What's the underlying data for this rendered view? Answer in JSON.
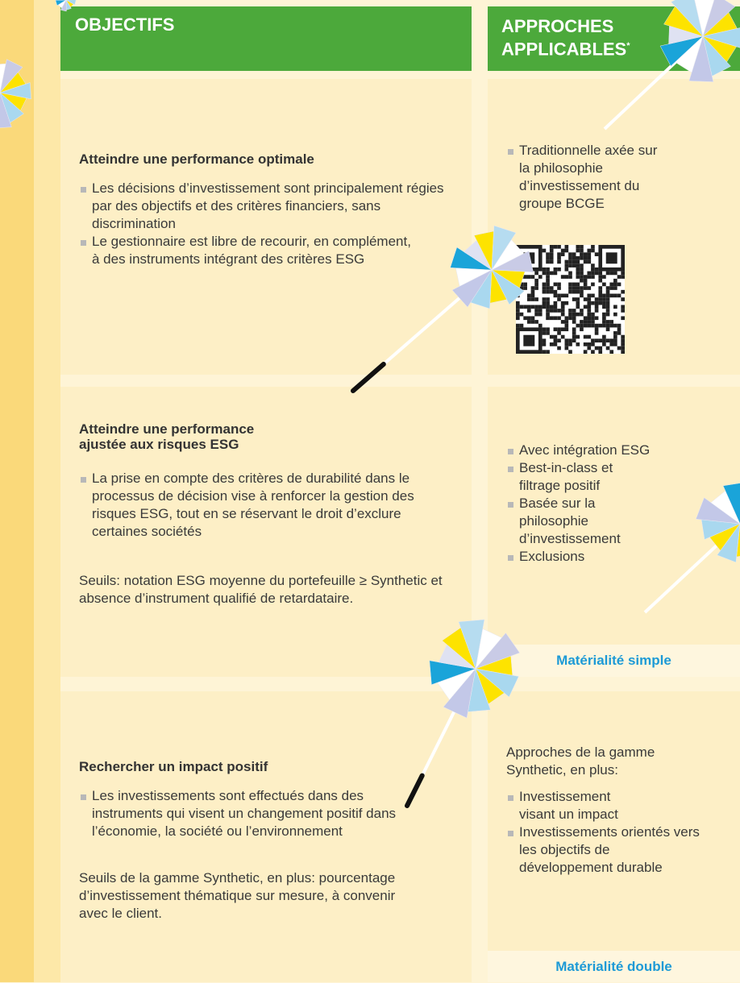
{
  "header": {
    "objectives": "OBJECTIFS",
    "approaches": "APPROCHES APPLICABLES",
    "approaches_mark": "*"
  },
  "rows": [
    {
      "objective": {
        "title": "Atteindre une performance optimale",
        "bullets": [
          "Les décisions d’investissement sont principalement régies par des objectifs et des critères financiers, sans discrimination",
          "Le gestionnaire est libre de recourir, en complément, à des instruments intégrant des critères ESG"
        ]
      },
      "approach": {
        "bullets": [
          "Traditionnelle axée sur la philosophie d’investissement du groupe BCGE"
        ]
      }
    },
    {
      "objective": {
        "title": "Atteindre une performance ajustée aux risques ESG",
        "bullets": [
          "La prise en compte des critères de durabilité dans le processus de décision vise à renforcer la gestion des risques ESG, tout en se réservant le droit d’exclure certaines sociétés"
        ],
        "note": "Seuils: notation ESG moyenne du portefeuille ≥ Synthetic et absence d’instrument qualifié de retardataire."
      },
      "approach": {
        "bullets": [
          "Avec intégration ESG",
          "Best-in-class et filtrage positif",
          "Basée sur la philosophie d’investissement",
          "Exclusions"
        ],
        "materiality": "Matérialité simple"
      }
    },
    {
      "objective": {
        "title": "Rechercher un impact positif",
        "bullets": [
          "Les investissements sont effectués dans des instruments qui visent un changement positif dans l’économie, la société ou l’environnement"
        ],
        "note": "Seuils de la gamme Synthetic, en plus: pourcentage d’investissement thématique sur mesure, à convenir avec le client."
      },
      "approach": {
        "intro": "Approches de la gamme Synthetic, en plus:",
        "bullets": [
          "Investissement visant un impact",
          "Investissements orientés vers les objectifs de développement durable"
        ],
        "materiality": "Matérialité double"
      }
    }
  ]
}
